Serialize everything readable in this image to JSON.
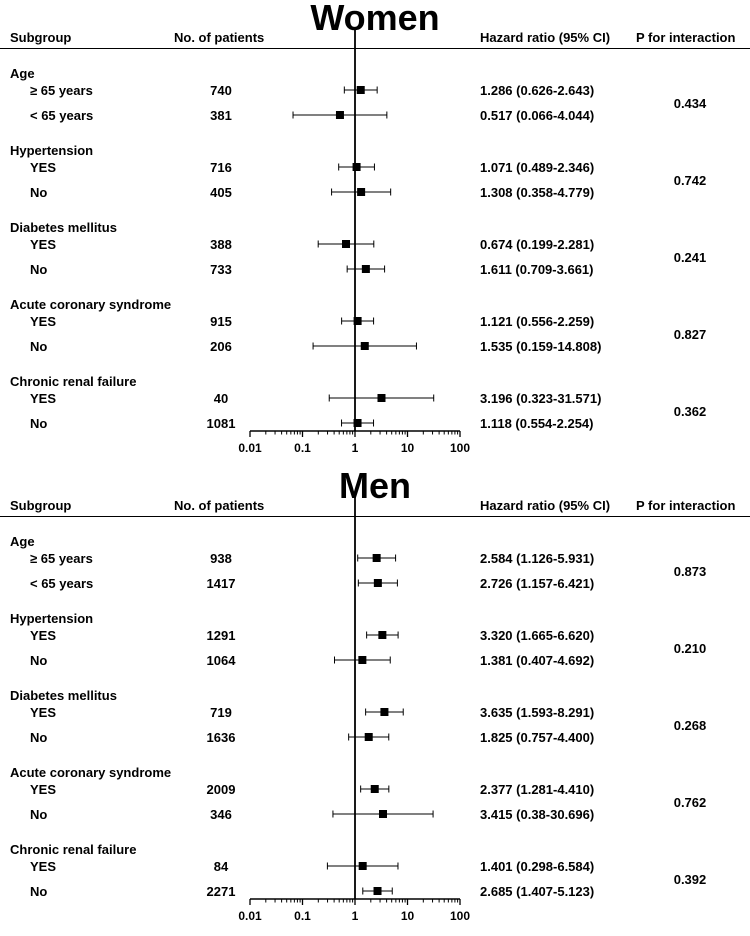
{
  "headers": {
    "subgroup": "Subgroup",
    "patients": "No. of patients",
    "hr": "Hazard ratio (95% CI)",
    "p": "P for interaction"
  },
  "chart_data": [
    {
      "type": "forest",
      "title": "Women",
      "xscale": "log",
      "xlim": [
        0.01,
        100
      ],
      "xticks": [
        "0.01",
        "0.1",
        "1",
        "10",
        "100"
      ],
      "reference_line": 1,
      "groups": [
        {
          "label": "Age",
          "p": "0.434",
          "rows": [
            {
              "label": "≥ 65 years",
              "n": "740",
              "hr_text": "1.286 (0.626-2.643)",
              "hr": 1.286,
              "lo": 0.626,
              "hi": 2.643
            },
            {
              "label": "< 65 years",
              "n": "381",
              "hr_text": "0.517 (0.066-4.044)",
              "hr": 0.517,
              "lo": 0.066,
              "hi": 4.044
            }
          ]
        },
        {
          "label": "Hypertension",
          "p": "0.742",
          "rows": [
            {
              "label": "YES",
              "n": "716",
              "hr_text": "1.071 (0.489-2.346)",
              "hr": 1.071,
              "lo": 0.489,
              "hi": 2.346
            },
            {
              "label": "No",
              "n": "405",
              "hr_text": "1.308 (0.358-4.779)",
              "hr": 1.308,
              "lo": 0.358,
              "hi": 4.779
            }
          ]
        },
        {
          "label": "Diabetes mellitus",
          "p": "0.241",
          "rows": [
            {
              "label": "YES",
              "n": "388",
              "hr_text": "0.674 (0.199-2.281)",
              "hr": 0.674,
              "lo": 0.199,
              "hi": 2.281
            },
            {
              "label": "No",
              "n": "733",
              "hr_text": "1.611 (0.709-3.661)",
              "hr": 1.611,
              "lo": 0.709,
              "hi": 3.661
            }
          ]
        },
        {
          "label": "Acute coronary syndrome",
          "p": "0.827",
          "rows": [
            {
              "label": "YES",
              "n": "915",
              "hr_text": "1.121 (0.556-2.259)",
              "hr": 1.121,
              "lo": 0.556,
              "hi": 2.259
            },
            {
              "label": "No",
              "n": "206",
              "hr_text": "1.535 (0.159-14.808)",
              "hr": 1.535,
              "lo": 0.159,
              "hi": 14.808
            }
          ]
        },
        {
          "label": "Chronic renal failure",
          "p": "0.362",
          "rows": [
            {
              "label": "YES",
              "n": "40",
              "hr_text": "3.196 (0.323-31.571)",
              "hr": 3.196,
              "lo": 0.323,
              "hi": 31.571
            },
            {
              "label": "No",
              "n": "1081",
              "hr_text": "1.118 (0.554-2.254)",
              "hr": 1.118,
              "lo": 0.554,
              "hi": 2.254
            }
          ]
        }
      ]
    },
    {
      "type": "forest",
      "title": "Men",
      "xscale": "log",
      "xlim": [
        0.01,
        100
      ],
      "xticks": [
        "0.01",
        "0.1",
        "1",
        "10",
        "100"
      ],
      "reference_line": 1,
      "groups": [
        {
          "label": "Age",
          "p": "0.873",
          "rows": [
            {
              "label": "≥ 65 years",
              "n": "938",
              "hr_text": "2.584 (1.126-5.931)",
              "hr": 2.584,
              "lo": 1.126,
              "hi": 5.931
            },
            {
              "label": "< 65 years",
              "n": "1417",
              "hr_text": "2.726 (1.157-6.421)",
              "hr": 2.726,
              "lo": 1.157,
              "hi": 6.421
            }
          ]
        },
        {
          "label": "Hypertension",
          "p": "0.210",
          "rows": [
            {
              "label": "YES",
              "n": "1291",
              "hr_text": "3.320 (1.665-6.620)",
              "hr": 3.32,
              "lo": 1.665,
              "hi": 6.62
            },
            {
              "label": "No",
              "n": "1064",
              "hr_text": "1.381 (0.407-4.692)",
              "hr": 1.381,
              "lo": 0.407,
              "hi": 4.692
            }
          ]
        },
        {
          "label": "Diabetes mellitus",
          "p": "0.268",
          "rows": [
            {
              "label": "YES",
              "n": "719",
              "hr_text": "3.635 (1.593-8.291)",
              "hr": 3.635,
              "lo": 1.593,
              "hi": 8.291
            },
            {
              "label": "No",
              "n": "1636",
              "hr_text": "1.825 (0.757-4.400)",
              "hr": 1.825,
              "lo": 0.757,
              "hi": 4.4
            }
          ]
        },
        {
          "label": "Acute coronary syndrome",
          "p": "0.762",
          "rows": [
            {
              "label": "YES",
              "n": "2009",
              "hr_text": "2.377 (1.281-4.410)",
              "hr": 2.377,
              "lo": 1.281,
              "hi": 4.41
            },
            {
              "label": "No",
              "n": "346",
              "hr_text": "3.415 (0.38-30.696)",
              "hr": 3.415,
              "lo": 0.38,
              "hi": 30.696
            }
          ]
        },
        {
          "label": "Chronic renal failure",
          "p": "0.392",
          "rows": [
            {
              "label": "YES",
              "n": "84",
              "hr_text": "1.401 (0.298-6.584)",
              "hr": 1.401,
              "lo": 0.298,
              "hi": 6.584
            },
            {
              "label": "No",
              "n": "2271",
              "hr_text": "2.685 (1.407-5.123)",
              "hr": 2.685,
              "lo": 1.407,
              "hi": 5.123
            }
          ]
        }
      ]
    }
  ]
}
